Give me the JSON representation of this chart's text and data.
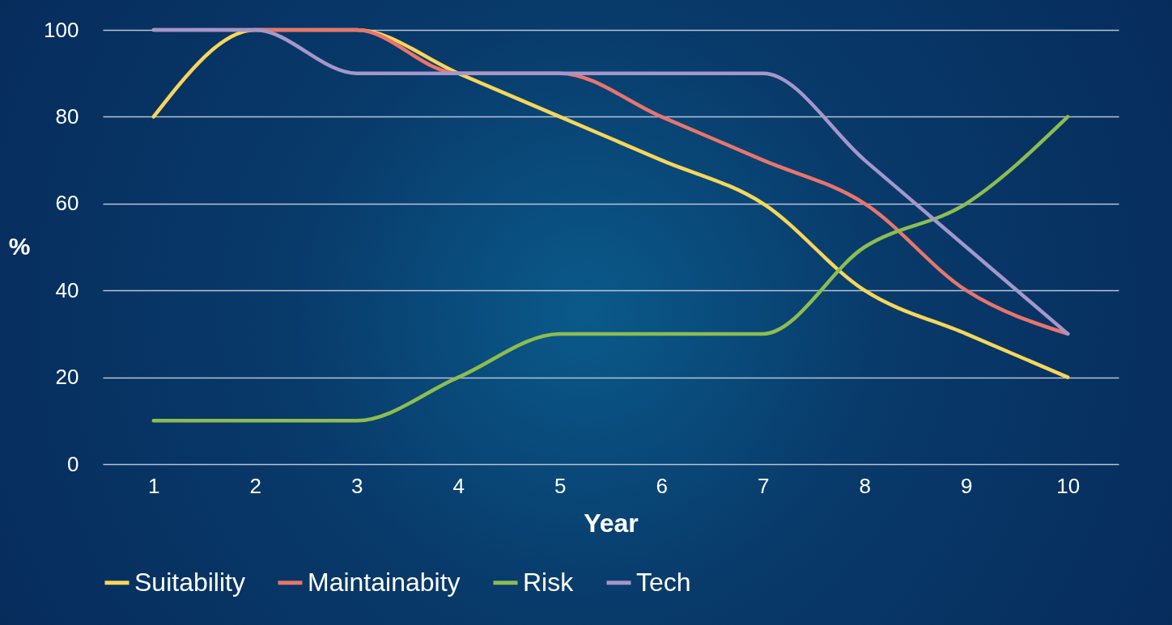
{
  "chart_data": {
    "type": "line",
    "xlabel": "Year",
    "ylabel": "%",
    "categories": [
      "1",
      "2",
      "3",
      "4",
      "5",
      "6",
      "7",
      "8",
      "9",
      "10"
    ],
    "series": [
      {
        "name": "Suitability",
        "color": "#f7d65a",
        "values": [
          80,
          100,
          100,
          90,
          80,
          70,
          60,
          40,
          30,
          20
        ]
      },
      {
        "name": "Maintainabity",
        "color": "#e8756c",
        "values": [
          100,
          100,
          100,
          90,
          90,
          80,
          70,
          60,
          40,
          30
        ]
      },
      {
        "name": "Risk",
        "color": "#8dbd50",
        "values": [
          10,
          10,
          10,
          20,
          30,
          30,
          30,
          50,
          60,
          80
        ]
      },
      {
        "name": "Tech",
        "color": "#a497c9",
        "values": [
          100,
          100,
          90,
          90,
          90,
          90,
          90,
          70,
          50,
          30
        ]
      }
    ],
    "ylim": [
      0,
      100
    ],
    "yticks": [
      0,
      20,
      40,
      60,
      80,
      100
    ],
    "grid": "y",
    "legend": "bottom",
    "marker": "none",
    "line_style": "solid"
  }
}
